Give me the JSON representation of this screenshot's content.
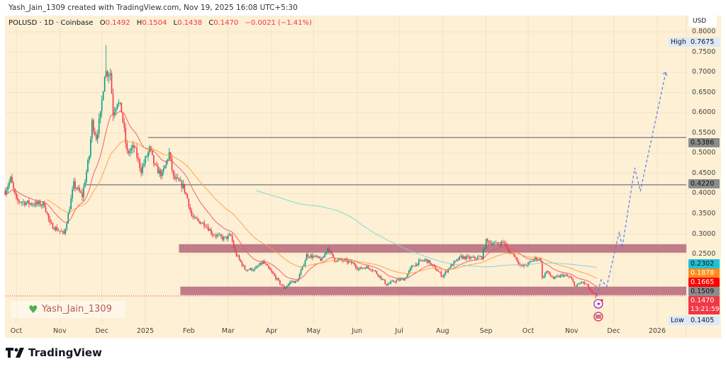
{
  "credit": "Yash_Jain_1309 created with TradingView.com, Nov 19, 2025 16:08 UTC+5:30",
  "legend": {
    "symbol": "POLUSD · 1D · Coinbase",
    "o_label": "O",
    "o": "0.1492",
    "h_label": "H",
    "h": "0.1504",
    "l_label": "L",
    "l": "0.1438",
    "c_label": "C",
    "c": "0.1470",
    "change": "−0.0021 (−1.41%)"
  },
  "currency": "USD",
  "watermark": "Yash_Jain_1309",
  "footer_logo": "TradingView",
  "colors": {
    "background": "#fdf0d5",
    "up": "#089981",
    "down": "#f23645",
    "ema_fast": "#f7525f",
    "ema_slow": "#ff9f40",
    "ma_long": "#7fd3d6",
    "zone": "#b5677a",
    "projection": "#5b7be8"
  },
  "price_axis": {
    "ticks": [
      "0.8000",
      "0.7500",
      "0.7000",
      "0.6500",
      "0.6000",
      "0.5500",
      "0.5000",
      "0.4500",
      "0.4000",
      "0.3500",
      "0.3000",
      "0.2500"
    ]
  },
  "time_axis": {
    "ticks": [
      [
        "2024-10-01",
        "Oct"
      ],
      [
        "2024-11-01",
        "Nov"
      ],
      [
        "2024-12-01",
        "Dec"
      ],
      [
        "2025-01-01",
        "2025"
      ],
      [
        "2025-02-01",
        "Feb"
      ],
      [
        "2025-03-01",
        "Mar"
      ],
      [
        "2025-04-01",
        "Apr"
      ],
      [
        "2025-05-01",
        "May"
      ],
      [
        "2025-06-01",
        "Jun"
      ],
      [
        "2025-07-01",
        "Jul"
      ],
      [
        "2025-08-01",
        "Aug"
      ],
      [
        "2025-09-01",
        "Sep"
      ],
      [
        "2025-10-01",
        "Oct"
      ],
      [
        "2025-11-01",
        "Nov"
      ],
      [
        "2025-12-01",
        "Dec"
      ],
      [
        "2026-01-01",
        "2026"
      ]
    ]
  },
  "tags": {
    "high_label": "High",
    "high": "0.7675",
    "low_label": "Low",
    "low": "0.1405",
    "level_upper": "0.5386",
    "level_lower": "0.4220",
    "ma_long": "0.2302",
    "ema_slow": "0.1878",
    "ema_fast": "0.1665",
    "zone_low": "0.1509",
    "last": "0.1470",
    "countdown": "13:21:59"
  },
  "chart_data": {
    "type": "candlestick",
    "symbol": "POLUSD",
    "interval": "1D",
    "exchange": "Coinbase",
    "ylim": [
      0.13,
      0.82
    ],
    "high": 0.7675,
    "low": 0.1405,
    "last": 0.147,
    "close_path": [
      [
        "2024-09-23",
        0.406
      ],
      [
        "2024-09-27",
        0.436
      ],
      [
        "2024-10-01",
        0.383
      ],
      [
        "2024-10-10",
        0.376
      ],
      [
        "2024-10-21",
        0.373
      ],
      [
        "2024-10-25",
        0.324
      ],
      [
        "2024-11-04",
        0.3
      ],
      [
        "2024-11-07",
        0.348
      ],
      [
        "2024-11-11",
        0.423
      ],
      [
        "2024-11-17",
        0.394
      ],
      [
        "2024-11-22",
        0.494
      ],
      [
        "2024-11-24",
        0.576
      ],
      [
        "2024-11-27",
        0.54
      ],
      [
        "2024-11-30",
        0.593
      ],
      [
        "2024-12-03",
        0.7
      ],
      [
        "2024-12-07",
        0.7
      ],
      [
        "2024-12-09",
        0.6
      ],
      [
        "2024-12-12",
        0.63
      ],
      [
        "2024-12-15",
        0.605
      ],
      [
        "2024-12-19",
        0.5
      ],
      [
        "2024-12-24",
        0.515
      ],
      [
        "2024-12-29",
        0.458
      ],
      [
        "2025-01-04",
        0.51
      ],
      [
        "2025-01-08",
        0.464
      ],
      [
        "2025-01-13",
        0.446
      ],
      [
        "2025-01-18",
        0.5
      ],
      [
        "2025-01-21",
        0.44
      ],
      [
        "2025-01-28",
        0.418
      ],
      [
        "2025-01-31",
        0.388
      ],
      [
        "2025-02-03",
        0.345
      ],
      [
        "2025-02-05",
        0.336
      ],
      [
        "2025-02-13",
        0.324
      ],
      [
        "2025-02-18",
        0.3
      ],
      [
        "2025-02-26",
        0.289
      ],
      [
        "2025-03-03",
        0.296
      ],
      [
        "2025-03-06",
        0.254
      ],
      [
        "2025-03-13",
        0.213
      ],
      [
        "2025-03-20",
        0.213
      ],
      [
        "2025-03-26",
        0.231
      ],
      [
        "2025-04-02",
        0.201
      ],
      [
        "2025-04-07",
        0.178
      ],
      [
        "2025-04-10",
        0.166
      ],
      [
        "2025-04-15",
        0.183
      ],
      [
        "2025-04-19",
        0.182
      ],
      [
        "2025-04-24",
        0.226
      ],
      [
        "2025-04-26",
        0.248
      ],
      [
        "2025-05-02",
        0.243
      ],
      [
        "2025-05-07",
        0.236
      ],
      [
        "2025-05-11",
        0.266
      ],
      [
        "2025-05-16",
        0.236
      ],
      [
        "2025-05-23",
        0.234
      ],
      [
        "2025-05-30",
        0.226
      ],
      [
        "2025-06-02",
        0.213
      ],
      [
        "2025-06-07",
        0.219
      ],
      [
        "2025-06-12",
        0.213
      ],
      [
        "2025-06-17",
        0.196
      ],
      [
        "2025-06-22",
        0.175
      ],
      [
        "2025-06-27",
        0.183
      ],
      [
        "2025-07-05",
        0.19
      ],
      [
        "2025-07-10",
        0.219
      ],
      [
        "2025-07-15",
        0.231
      ],
      [
        "2025-07-20",
        0.236
      ],
      [
        "2025-07-22",
        0.231
      ],
      [
        "2025-08-01",
        0.196
      ],
      [
        "2025-08-06",
        0.219
      ],
      [
        "2025-08-14",
        0.243
      ],
      [
        "2025-08-22",
        0.24
      ],
      [
        "2025-08-29",
        0.243
      ],
      [
        "2025-09-01",
        0.283
      ],
      [
        "2025-09-08",
        0.275
      ],
      [
        "2025-09-14",
        0.28
      ],
      [
        "2025-09-16",
        0.26
      ],
      [
        "2025-09-21",
        0.248
      ],
      [
        "2025-09-26",
        0.219
      ],
      [
        "2025-10-01",
        0.226
      ],
      [
        "2025-10-06",
        0.24
      ],
      [
        "2025-10-10",
        0.236
      ],
      [
        "2025-10-11",
        0.19
      ],
      [
        "2025-10-14",
        0.208
      ],
      [
        "2025-10-19",
        0.19
      ],
      [
        "2025-10-26",
        0.199
      ],
      [
        "2025-10-31",
        0.192
      ],
      [
        "2025-11-04",
        0.17
      ],
      [
        "2025-11-08",
        0.182
      ],
      [
        "2025-11-12",
        0.173
      ],
      [
        "2025-11-15",
        0.155
      ],
      [
        "2025-11-19",
        0.147
      ]
    ],
    "indicators": [
      {
        "kind": "EMA",
        "color": "#f7525f",
        "value": 0.1665
      },
      {
        "kind": "EMA",
        "color": "#ff9f40",
        "value": 0.1878
      },
      {
        "kind": "MA",
        "color": "#7fd3d6",
        "value": 0.2302
      }
    ],
    "levels": [
      {
        "price": 0.5386,
        "from": "2025-01-03"
      },
      {
        "price": 0.422,
        "from": "2024-11-20"
      }
    ],
    "zones": [
      {
        "from": "2025-01-25",
        "top": 0.275,
        "bottom": 0.254
      },
      {
        "from": "2025-01-26",
        "top": 0.17,
        "bottom": 0.149
      }
    ],
    "projection": [
      [
        "2025-11-19",
        0.147
      ],
      [
        "2025-11-22",
        0.187
      ],
      [
        "2025-11-26",
        0.17
      ],
      [
        "2025-12-05",
        0.306
      ],
      [
        "2025-12-07",
        0.266
      ],
      [
        "2025-12-16",
        0.464
      ],
      [
        "2025-12-20",
        0.406
      ],
      [
        "2026-01-07",
        0.698
      ]
    ]
  }
}
